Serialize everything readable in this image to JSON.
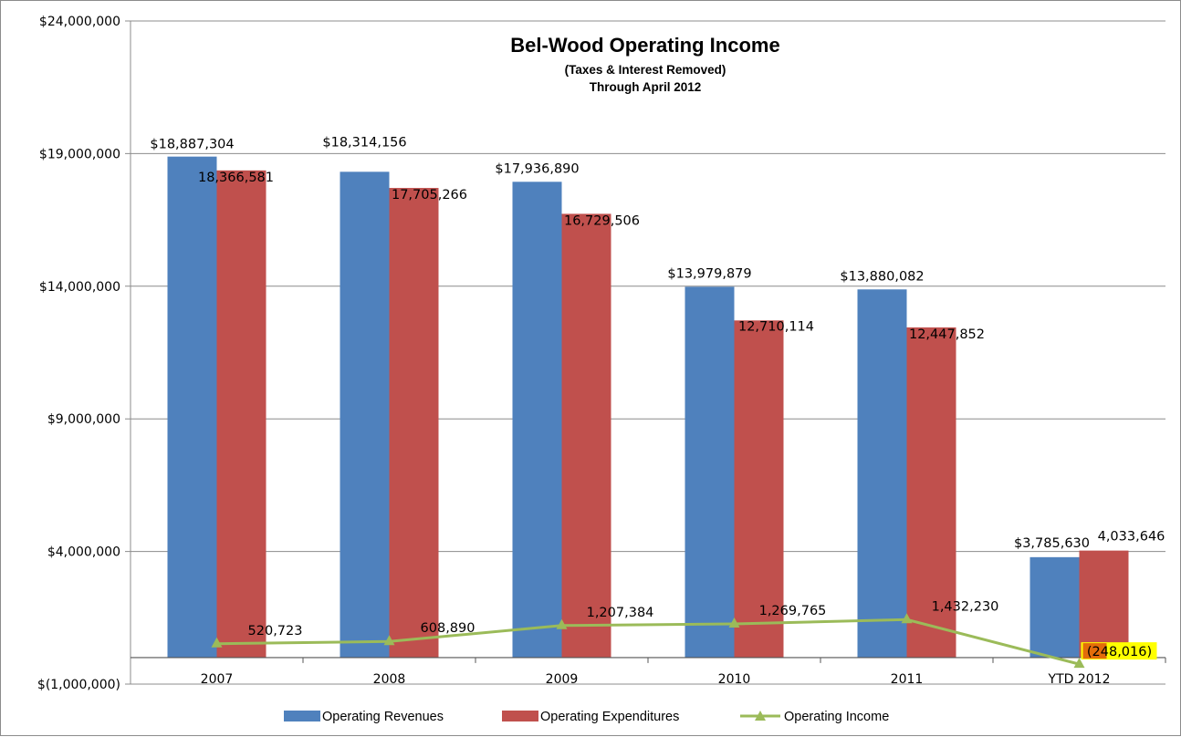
{
  "colors": {
    "revenues": "#4f81bd",
    "expenditures": "#c0504d",
    "income": "#9bbb59",
    "highlight": "#ffff00",
    "highlight_inner": "#e36c0a",
    "grid": "#8c8c8c"
  },
  "chart_data": {
    "type": "bar",
    "title": "Bel-Wood Operating Income",
    "subtitle_1": "(Taxes & Interest Removed)",
    "subtitle_2": "Through April 2012",
    "categories": [
      "2007",
      "2008",
      "2009",
      "2010",
      "2011",
      "YTD 2012"
    ],
    "ylim": [
      -1000000,
      24000000
    ],
    "yticks": [
      -1000000,
      4000000,
      9000000,
      14000000,
      19000000,
      24000000
    ],
    "ytick_labels": [
      "$(1,000,000)",
      "$4,000,000",
      "$9,000,000",
      "$14,000,000",
      "$19,000,000",
      "$24,000,000"
    ],
    "grid": true,
    "legend_position": "bottom",
    "series": [
      {
        "name": "Operating Revenues",
        "kind": "bar",
        "values": [
          18887304,
          18314156,
          17936890,
          13979879,
          13880082,
          3785630
        ],
        "labels": [
          "$18,887,304",
          "$18,314,156",
          "$17,936,890",
          "$13,979,879",
          "$13,880,082",
          "$3,785,630"
        ]
      },
      {
        "name": "Operating Expenditures",
        "kind": "bar",
        "values": [
          18366581,
          17705266,
          16729506,
          12710114,
          12447852,
          4033646
        ],
        "labels": [
          "18,366,581",
          "17,705,266",
          "16,729,506",
          "12,710,114",
          "12,447,852",
          "4,033,646"
        ]
      },
      {
        "name": "Operating Income",
        "kind": "line",
        "values": [
          520723,
          608890,
          1207384,
          1269765,
          1432230,
          -248016
        ],
        "labels": [
          "520,723",
          "608,890",
          "1,207,384",
          "1,269,765",
          "1,432,230",
          "(248,016)"
        ]
      }
    ]
  }
}
